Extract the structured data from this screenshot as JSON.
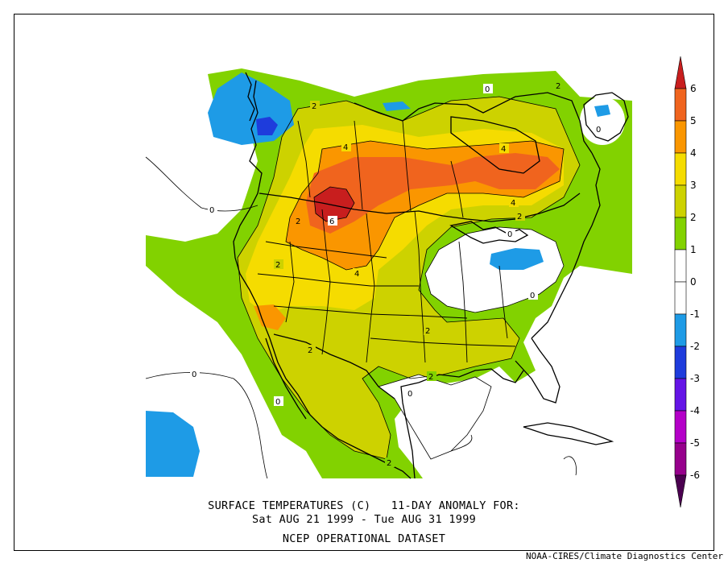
{
  "title": {
    "line1": "SURFACE TEMPERATURES (C)   11-DAY ANOMALY FOR:",
    "line2": "Sat AUG 21 1999 - Tue AUG 31 1999",
    "line3": "NCEP OPERATIONAL DATASET"
  },
  "credit": "NOAA-CIRES/Climate Diagnostics Center",
  "colorbar": {
    "levels": [
      {
        "value": "6",
        "color": "#c81e1e"
      },
      {
        "value": "5",
        "color": "#f0641e"
      },
      {
        "value": "4",
        "color": "#fa9600"
      },
      {
        "value": "3",
        "color": "#f5dc00"
      },
      {
        "value": "2",
        "color": "#cdd200"
      },
      {
        "value": "1",
        "color": "#82d200"
      },
      {
        "value": "0",
        "color": "#ffffff"
      },
      {
        "value": "-1",
        "color": "#ffffff"
      },
      {
        "value": "-2",
        "color": "#1e9be6"
      },
      {
        "value": "-3",
        "color": "#1e3cdc"
      },
      {
        "value": "-4",
        "color": "#6414e6"
      },
      {
        "value": "-5",
        "color": "#b400c8"
      },
      {
        "value": "-6",
        "color": "#96008c"
      }
    ],
    "tip_top_color": "#c81e1e",
    "tip_bottom_color": "#4b0050"
  },
  "contour_labels": [
    "2",
    "2",
    "4",
    "4",
    "6",
    "4",
    "2",
    "0",
    "0",
    "2",
    "2",
    "4",
    "2",
    "0",
    "0",
    "2",
    "0",
    "2",
    "0",
    "0",
    "2",
    "0"
  ],
  "colors": {
    "green": "#82d200",
    "yellowgreen": "#cdd200",
    "yellow": "#f5dc00",
    "orange": "#fa9600",
    "darkorange": "#f0641e",
    "red": "#c81e1e",
    "lightblue": "#1e9be6",
    "blue": "#1e3cdc"
  }
}
